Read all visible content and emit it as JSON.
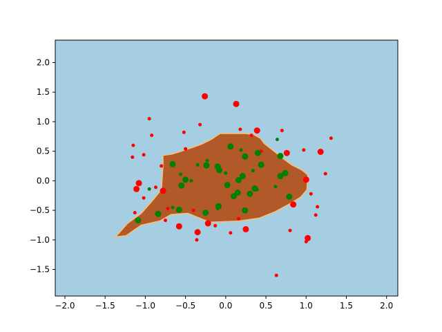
{
  "chart_data": {
    "type": "scatter",
    "title": "",
    "xlabel": "",
    "ylabel": "",
    "xlim": [
      -2.12,
      2.14
    ],
    "ylim": [
      -1.95,
      2.38
    ],
    "xticks": [
      -2.0,
      -1.5,
      -1.0,
      -0.5,
      0.0,
      0.5,
      1.0,
      1.5,
      2.0
    ],
    "yticks": [
      -1.5,
      -1.0,
      -0.5,
      0.0,
      0.5,
      1.0,
      1.5,
      2.0
    ],
    "xtick_labels": [
      "−2.0",
      "−1.5",
      "−1.0",
      "−0.5",
      "0.0",
      "0.5",
      "1.0",
      "1.5",
      "2.0"
    ],
    "ytick_labels": [
      "−1.5",
      "−1.0",
      "−0.5",
      "0.0",
      "0.5",
      "1.0",
      "1.5",
      "2.0"
    ],
    "grid": false,
    "legend": "none",
    "colors": {
      "background_region": "#a6cee3",
      "decision_region": "#b15928",
      "region_edge": "#fdbf6f",
      "class_0": "#ff0000",
      "class_1": "#008000"
    },
    "decision_region": [
      [
        -1.37,
        -0.95
      ],
      [
        -1.24,
        -0.93
      ],
      [
        -1.05,
        -0.75
      ],
      [
        -0.82,
        -0.68
      ],
      [
        -0.68,
        -0.57
      ],
      [
        -0.47,
        -0.55
      ],
      [
        -0.2,
        -0.7
      ],
      [
        0.17,
        -0.68
      ],
      [
        0.42,
        -0.63
      ],
      [
        0.62,
        -0.52
      ],
      [
        0.78,
        -0.4
      ],
      [
        0.93,
        -0.28
      ],
      [
        1.01,
        -0.15
      ],
      [
        1.02,
        0.1
      ],
      [
        0.95,
        0.18
      ],
      [
        0.82,
        0.27
      ],
      [
        0.72,
        0.37
      ],
      [
        0.6,
        0.5
      ],
      [
        0.48,
        0.63
      ],
      [
        0.43,
        0.72
      ],
      [
        0.35,
        0.78
      ],
      [
        0.25,
        0.8
      ],
      [
        -0.07,
        0.8
      ],
      [
        -0.18,
        0.7
      ],
      [
        -0.3,
        0.62
      ],
      [
        -0.4,
        0.57
      ],
      [
        -0.55,
        0.5
      ],
      [
        -0.67,
        0.45
      ],
      [
        -0.78,
        0.43
      ],
      [
        -0.78,
        0.25
      ],
      [
        -0.8,
        -0.15
      ],
      [
        -0.92,
        -0.35
      ],
      [
        -1.05,
        -0.55
      ],
      [
        -1.22,
        -0.72
      ]
    ],
    "series": [
      {
        "class": 0,
        "color": "red",
        "points": [
          [
            -0.26,
            1.43,
            1
          ],
          [
            0.13,
            1.3,
            1
          ],
          [
            0.39,
            0.85,
            1
          ],
          [
            0.76,
            0.47,
            1
          ],
          [
            1.18,
            0.49,
            1
          ],
          [
            1.0,
            0.02,
            1
          ],
          [
            -1.08,
            -0.04,
            1
          ],
          [
            -1.11,
            -0.14,
            1
          ],
          [
            -0.78,
            -0.17,
            1
          ],
          [
            0.84,
            -0.4,
            1
          ],
          [
            -0.58,
            -0.77,
            1
          ],
          [
            -0.22,
            -0.72,
            1
          ],
          [
            -0.35,
            -0.87,
            1
          ],
          [
            0.25,
            -0.82,
            1
          ],
          [
            1.02,
            -0.97,
            1
          ],
          [
            -0.95,
            1.05,
            0
          ],
          [
            -0.52,
            0.82,
            0
          ],
          [
            -0.32,
            0.95,
            0
          ],
          [
            0.18,
            0.87,
            0
          ],
          [
            0.32,
            0.77,
            0
          ],
          [
            0.7,
            0.85,
            0
          ],
          [
            -0.92,
            0.77,
            0
          ],
          [
            -1.15,
            0.6,
            0
          ],
          [
            -1.16,
            0.4,
            0
          ],
          [
            -1.02,
            0.44,
            0
          ],
          [
            -0.5,
            0.54,
            0
          ],
          [
            0.44,
            0.5,
            0
          ],
          [
            -0.8,
            0.25,
            0
          ],
          [
            1.31,
            0.72,
            0
          ],
          [
            0.97,
            0.52,
            0
          ],
          [
            1.24,
            0.12,
            0
          ],
          [
            1.06,
            -0.22,
            0
          ],
          [
            -0.87,
            -0.11,
            0
          ],
          [
            -1.02,
            -0.29,
            0
          ],
          [
            -0.72,
            -0.47,
            0
          ],
          [
            -1.13,
            -0.54,
            0
          ],
          [
            1.14,
            -0.44,
            0
          ],
          [
            1.12,
            -0.58,
            0
          ],
          [
            -0.75,
            -0.67,
            0
          ],
          [
            -0.13,
            -0.76,
            0
          ],
          [
            0.8,
            -0.84,
            0
          ],
          [
            -0.36,
            -1.0,
            0
          ],
          [
            1.0,
            -1.03,
            0
          ],
          [
            0.06,
            -0.88,
            0
          ],
          [
            0.16,
            -0.64,
            0
          ],
          [
            -0.4,
            -0.5,
            0
          ],
          [
            0.63,
            -1.6,
            0
          ]
        ]
      },
      {
        "class": 1,
        "color": "green",
        "points": [
          [
            0.06,
            0.58,
            1
          ],
          [
            0.24,
            0.41,
            1
          ],
          [
            0.4,
            0.47,
            1
          ],
          [
            0.68,
            0.42,
            1
          ],
          [
            -0.66,
            0.28,
            1
          ],
          [
            -0.24,
            0.26,
            1
          ],
          [
            -0.1,
            0.24,
            1
          ],
          [
            -0.08,
            0.18,
            1
          ],
          [
            0.44,
            0.27,
            1
          ],
          [
            0.74,
            0.13,
            1
          ],
          [
            0.68,
            0.08,
            1
          ],
          [
            0.21,
            0.08,
            1
          ],
          [
            0.16,
            0.01,
            1
          ],
          [
            -0.5,
            0.02,
            1
          ],
          [
            -0.55,
            -0.08,
            1
          ],
          [
            0.79,
            -0.27,
            1
          ],
          [
            0.15,
            -0.2,
            1
          ],
          [
            0.1,
            -0.26,
            1
          ],
          [
            0.3,
            -0.22,
            1
          ],
          [
            -0.58,
            -0.49,
            1
          ],
          [
            -0.84,
            -0.56,
            1
          ],
          [
            -1.09,
            -0.67,
            1
          ],
          [
            -0.25,
            -0.54,
            1
          ],
          [
            0.24,
            -0.5,
            1
          ],
          [
            0.02,
            -0.07,
            1
          ],
          [
            -0.09,
            -0.43,
            1
          ],
          [
            0.36,
            -0.13,
            1
          ],
          [
            0.64,
            0.7,
            0
          ],
          [
            0.19,
            0.52,
            0
          ],
          [
            -0.23,
            0.34,
            0
          ],
          [
            -0.35,
            0.27,
            0
          ],
          [
            -0.56,
            0.11,
            0
          ],
          [
            0.34,
            0.17,
            0
          ],
          [
            0.0,
            0.13,
            0
          ],
          [
            -0.43,
            0.0,
            0
          ],
          [
            0.62,
            -0.1,
            0
          ],
          [
            -0.95,
            -0.14,
            0
          ],
          [
            0.39,
            -0.15,
            0
          ],
          [
            -0.66,
            -0.45,
            0
          ],
          [
            -0.1,
            -0.47,
            0
          ]
        ]
      }
    ]
  }
}
